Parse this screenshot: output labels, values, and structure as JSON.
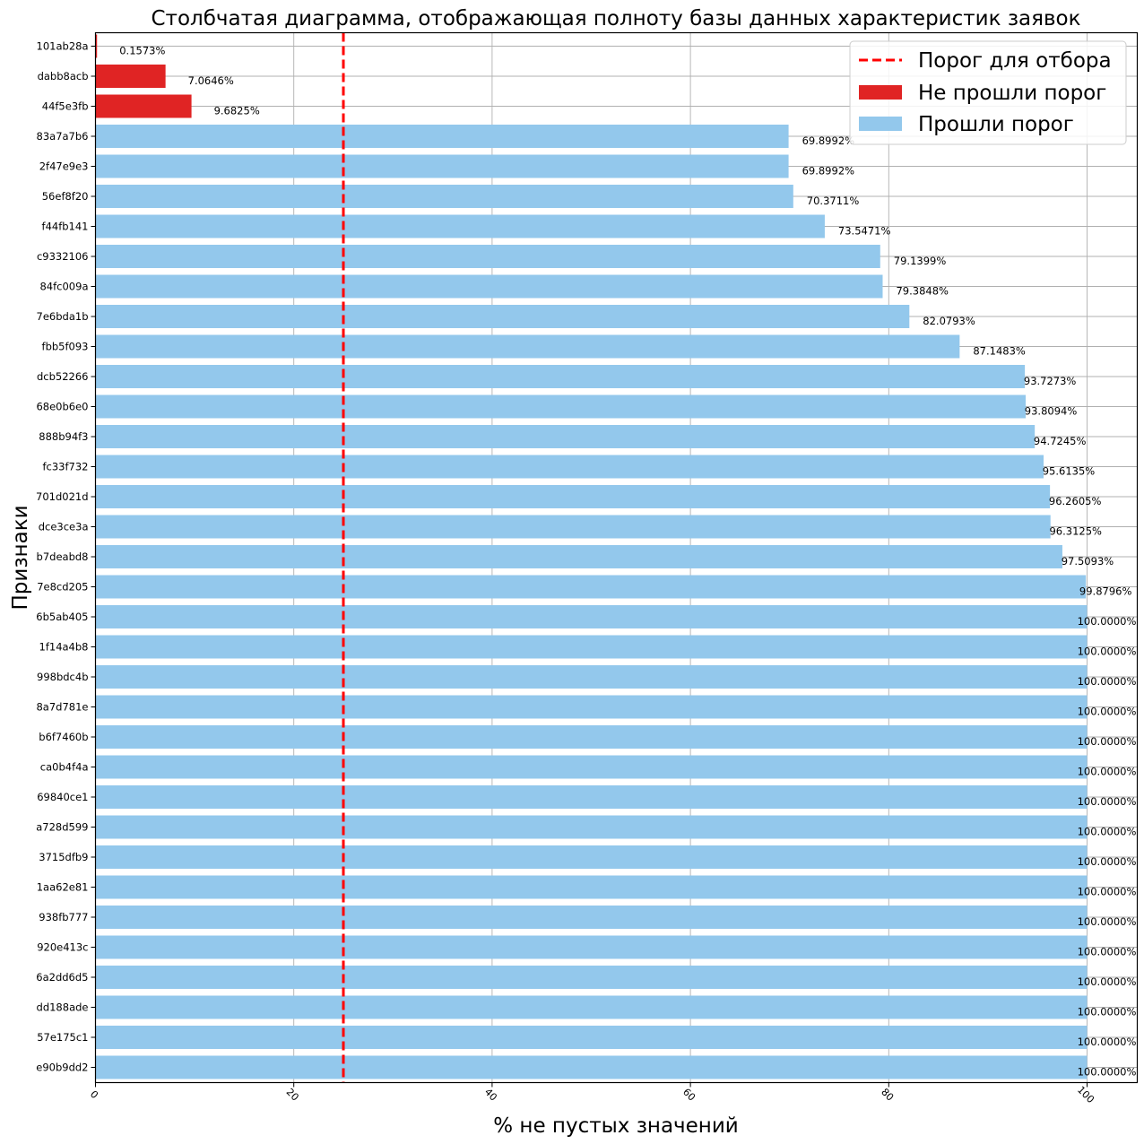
{
  "chart_data": {
    "type": "bar",
    "orientation": "horizontal",
    "title": "Столбчатая диаграмма, отображающая полноту базы данных характеристик заявок",
    "xlabel": "% не пустых значений",
    "ylabel": "Признаки",
    "xlim": [
      0,
      105
    ],
    "xticks": [
      0,
      20,
      40,
      60,
      80,
      100
    ],
    "grid": true,
    "threshold": 25,
    "legend": {
      "placement": "top-right",
      "entries": [
        {
          "key": "threshold",
          "label": "Порог для отбора"
        },
        {
          "key": "failed",
          "label": "Не прошли порог"
        },
        {
          "key": "passed",
          "label": "Прошли порог"
        }
      ]
    },
    "colors": {
      "failed": "#e02424",
      "passed": "#93c8ec",
      "threshold": "#ff0000",
      "grid": "#b0b0b0",
      "text": "#000000"
    },
    "categories": [
      "101ab28a",
      "dabb8acb",
      "44f5e3fb",
      "83a7a7b6",
      "2f47e9e3",
      "56ef8f20",
      "f44fb141",
      "c9332106",
      "84fc009a",
      "7e6bda1b",
      "fbb5f093",
      "dcb52266",
      "68e0b6e0",
      "888b94f3",
      "fc33f732",
      "701d021d",
      "dce3ce3a",
      "b7deabd8",
      "7e8cd205",
      "6b5ab405",
      "1f14a4b8",
      "998bdc4b",
      "8a7d781e",
      "b6f7460b",
      "ca0b4f4a",
      "69840ce1",
      "a728d599",
      "3715dfb9",
      "1aa62e81",
      "938fb777",
      "920e413c",
      "6a2dd6d5",
      "dd188ade",
      "57e175c1",
      "e90b9dd2"
    ],
    "values": [
      0.1573,
      7.0646,
      9.6825,
      69.8992,
      69.8992,
      70.3711,
      73.5471,
      79.1399,
      79.3848,
      82.0793,
      87.1483,
      93.7273,
      93.8094,
      94.7245,
      95.6135,
      96.2605,
      96.3125,
      97.5093,
      99.8796,
      100,
      100,
      100,
      100,
      100,
      100,
      100,
      100,
      100,
      100,
      100,
      100,
      100,
      100,
      100,
      100
    ],
    "value_labels": [
      "0.1573%",
      "7.0646%",
      "9.6825%",
      "69.8992%",
      "69.8992%",
      "70.3711%",
      "73.5471%",
      "79.1399%",
      "79.3848%",
      "82.0793%",
      "87.1483%",
      "93.7273%",
      "93.8094%",
      "94.7245%",
      "95.6135%",
      "96.2605%",
      "96.3125%",
      "97.5093%",
      "99.8796%",
      "100.0000%",
      "100.0000%",
      "100.0000%",
      "100.0000%",
      "100.0000%",
      "100.0000%",
      "100.0000%",
      "100.0000%",
      "100.0000%",
      "100.0000%",
      "100.0000%",
      "100.0000%",
      "100.0000%",
      "100.0000%",
      "100.0000%",
      "100.0000%"
    ]
  }
}
